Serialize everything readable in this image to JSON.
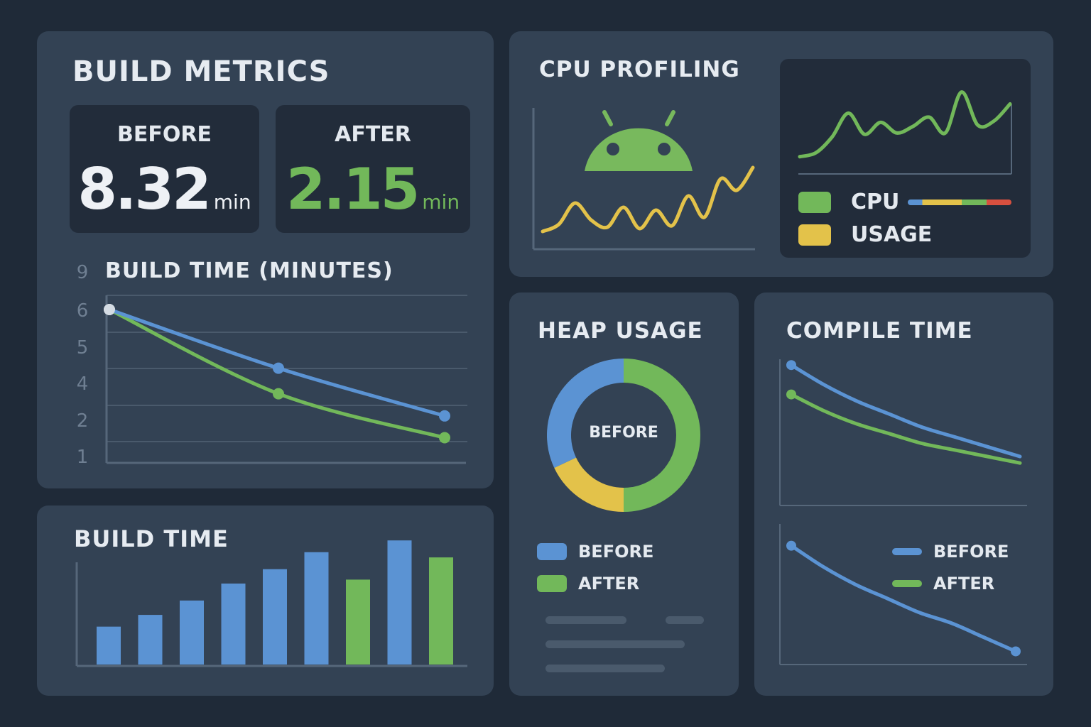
{
  "colors": {
    "blue": "#5b93d3",
    "green": "#72b85a",
    "yellow": "#e3c24a",
    "red": "#d8503f",
    "grid": "#4a5a6c",
    "axis": "#56677a",
    "android": "#78b95d"
  },
  "build_metrics": {
    "title": "BUILD METRICS",
    "before": {
      "label": "BEFORE",
      "value": "8.32",
      "unit": "min"
    },
    "after": {
      "label": "AFTER",
      "value": "2.15",
      "unit": "min"
    }
  },
  "cpu_profiling": {
    "title": "CPU PROFILING",
    "icon": "android-icon",
    "legend": [
      {
        "label": "CPU",
        "color": "#72b85a"
      },
      {
        "label": "USAGE",
        "color": "#e3c24a"
      }
    ]
  },
  "heap_usage": {
    "title": "HEAP USAGE",
    "center_label": "BEFORE",
    "legend": [
      {
        "label": "BEFORE",
        "color": "#5b93d3"
      },
      {
        "label": "AFTER",
        "color": "#72b85a"
      }
    ]
  },
  "compile_time": {
    "title": "COMPILE TIME",
    "legend": [
      {
        "label": "BEFORE",
        "color": "#5b93d3"
      },
      {
        "label": "AFTER",
        "color": "#72b85a"
      }
    ]
  },
  "build_time_bars": {
    "title": "BUILD TIME"
  },
  "chart_data": [
    {
      "id": "build-time-minutes",
      "type": "line",
      "title": "BUILD TIME (MINUTES)",
      "y_ticks": [
        "9",
        "6",
        "5",
        "4",
        "2",
        "1"
      ],
      "x": [
        0,
        1,
        2
      ],
      "series": [
        {
          "color": "#5b93d3",
          "values": [
            6,
            4.4,
            2.2
          ]
        },
        {
          "color": "#72b85a",
          "values": [
            6,
            3.4,
            1.5
          ]
        }
      ]
    },
    {
      "id": "build-time-bars",
      "type": "bar",
      "title": "BUILD TIME",
      "values": [
        2.9,
        3.8,
        4.9,
        6.2,
        7.3,
        8.6,
        6.5,
        9.5,
        8.2
      ],
      "bar_colors": [
        "#5b93d3",
        "#5b93d3",
        "#5b93d3",
        "#5b93d3",
        "#5b93d3",
        "#5b93d3",
        "#72b85a",
        "#5b93d3",
        "#72b85a"
      ],
      "ylim": [
        0,
        10
      ]
    },
    {
      "id": "cpu-profiling-usage",
      "type": "line",
      "values": [
        0.9,
        1.4,
        2.9,
        1.7,
        1.2,
        2.6,
        1.1,
        2.4,
        1.3,
        3.4,
        1.9,
        4.6,
        3.8,
        5.4
      ],
      "color": "#e3c24a",
      "ylim": [
        0,
        7
      ]
    },
    {
      "id": "cpu-profiling-cpu",
      "type": "line",
      "values": [
        1.2,
        1.5,
        2.7,
        4.5,
        2.9,
        3.8,
        3.0,
        3.5,
        4.2,
        3.0,
        6.1,
        3.6,
        3.9,
        5.2
      ],
      "color": "#72b85a",
      "ylim": [
        0,
        7
      ]
    },
    {
      "id": "heap-usage-donut",
      "type": "pie",
      "slices": [
        {
          "value": 50,
          "color": "#72b85a"
        },
        {
          "value": 18,
          "color": "#e3c24a"
        },
        {
          "value": 32,
          "color": "#5b93d3"
        }
      ]
    },
    {
      "id": "compile-time-top",
      "type": "line",
      "series": [
        {
          "color": "#5b93d3",
          "values": [
            8.6,
            7.4,
            6.4,
            5.6,
            4.8,
            4.2,
            3.6,
            3.0
          ]
        },
        {
          "color": "#72b85a",
          "values": [
            6.8,
            5.8,
            5.0,
            4.4,
            3.8,
            3.4,
            3.0,
            2.6
          ]
        }
      ],
      "ylim": [
        0,
        10
      ]
    },
    {
      "id": "compile-time-bottom",
      "type": "line",
      "series": [
        {
          "color": "#5b93d3",
          "values": [
            8.2,
            7.0,
            6.0,
            5.2,
            4.4,
            3.8,
            3.0,
            2.2
          ]
        }
      ],
      "ylim": [
        0,
        10
      ]
    }
  ]
}
